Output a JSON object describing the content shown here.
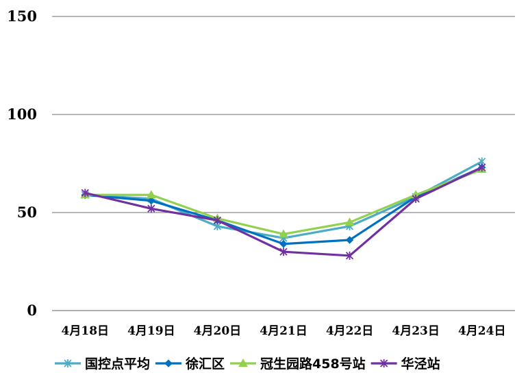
{
  "chart_data": {
    "type": "line",
    "title": "",
    "xlabel": "",
    "ylabel": "",
    "categories": [
      "4月18日",
      "4月19日",
      "4月20日",
      "4月21日",
      "4月22日",
      "4月23日",
      "4月24日"
    ],
    "ylim": [
      0,
      150
    ],
    "yticks": [
      0,
      50,
      100,
      150
    ],
    "grid": true,
    "legend_position": "bottom",
    "series": [
      {
        "name": "国控点平均",
        "color": "#4bacc6",
        "marker": "asterisk",
        "values": [
          59,
          57,
          43,
          37,
          43,
          58,
          76
        ]
      },
      {
        "name": "徐汇区",
        "color": "#0070c0",
        "marker": "diamond",
        "values": [
          59,
          56,
          46,
          34,
          36,
          58,
          73
        ]
      },
      {
        "name": "冠生园路458号站",
        "color": "#92d050",
        "marker": "triangle",
        "values": [
          59,
          59,
          47,
          39,
          45,
          59,
          72
        ]
      },
      {
        "name": "华泾站",
        "color": "#7030a0",
        "marker": "asterisk",
        "values": [
          60,
          52,
          46,
          30,
          28,
          57,
          73
        ]
      }
    ]
  }
}
